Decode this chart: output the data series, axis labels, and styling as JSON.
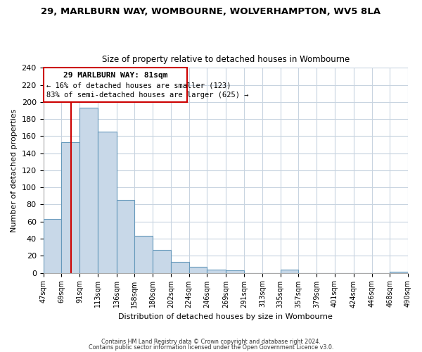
{
  "title": "29, MARLBURN WAY, WOMBOURNE, WOLVERHAMPTON, WV5 8LA",
  "subtitle": "Size of property relative to detached houses in Wombourne",
  "xlabel": "Distribution of detached houses by size in Wombourne",
  "ylabel": "Number of detached properties",
  "bar_edges": [
    47,
    69,
    91,
    113,
    136,
    158,
    180,
    202,
    224,
    246,
    269,
    291,
    313,
    335,
    357,
    379,
    401,
    424,
    446,
    468,
    490
  ],
  "bar_heights": [
    63,
    153,
    193,
    165,
    85,
    43,
    27,
    13,
    7,
    4,
    3,
    0,
    0,
    4,
    0,
    0,
    0,
    0,
    0,
    1
  ],
  "bar_color": "#c8d8e8",
  "bar_edge_color": "#6699bb",
  "property_line_x": 81,
  "property_line_color": "#cc0000",
  "ylim": [
    0,
    240
  ],
  "yticks": [
    0,
    20,
    40,
    60,
    80,
    100,
    120,
    140,
    160,
    180,
    200,
    220,
    240
  ],
  "tick_labels": [
    "47sqm",
    "69sqm",
    "91sqm",
    "113sqm",
    "136sqm",
    "158sqm",
    "180sqm",
    "202sqm",
    "224sqm",
    "246sqm",
    "269sqm",
    "291sqm",
    "313sqm",
    "335sqm",
    "357sqm",
    "379sqm",
    "401sqm",
    "424sqm",
    "446sqm",
    "468sqm",
    "490sqm"
  ],
  "annotation_title": "29 MARLBURN WAY: 81sqm",
  "annotation_line1": "← 16% of detached houses are smaller (123)",
  "annotation_line2": "83% of semi-detached houses are larger (625) →",
  "footer1": "Contains HM Land Registry data © Crown copyright and database right 2024.",
  "footer2": "Contains public sector information licensed under the Open Government Licence v3.0.",
  "background_color": "#ffffff",
  "grid_color": "#c8d4e0"
}
